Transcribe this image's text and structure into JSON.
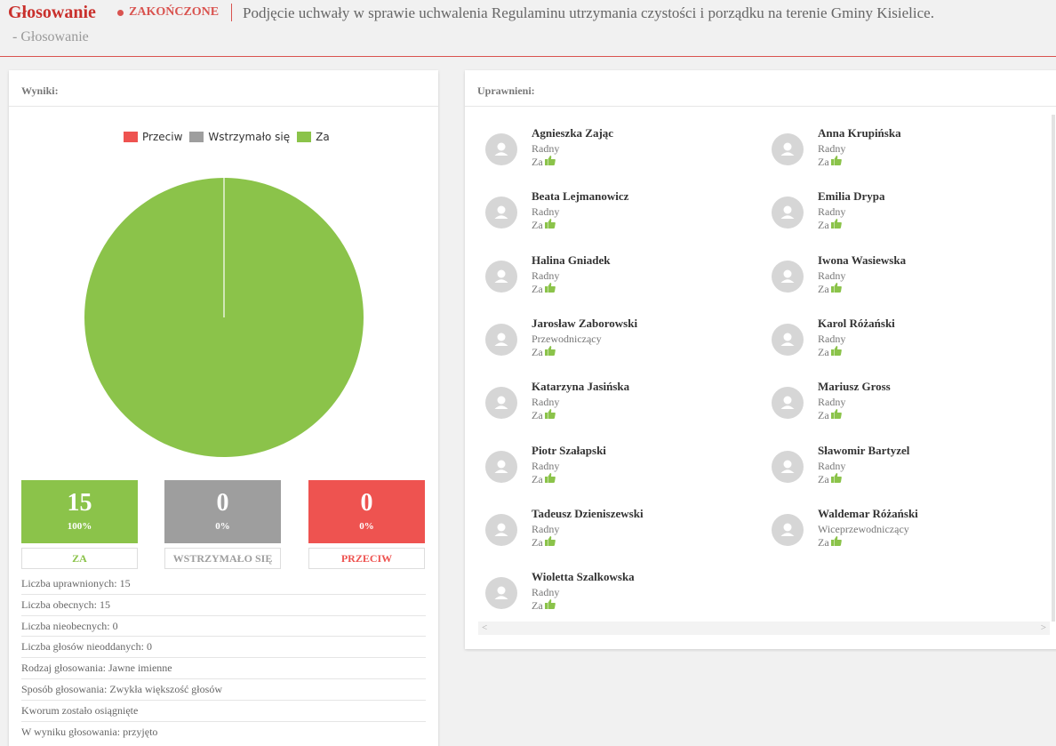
{
  "header": {
    "title": "Głosowanie",
    "status": "ZAKOŃCZONE",
    "description": "Podjęcie uchwały w sprawie uchwalenia Regulaminu utrzymania czystości i porządku na terenie Gminy Kisielice.",
    "breadcrumb": "-  Głosowanie"
  },
  "results": {
    "title": "Wyniki:",
    "legend": [
      {
        "label": "Przeciw",
        "color": "#ee5350"
      },
      {
        "label": "Wstrzymało się",
        "color": "#9e9e9e"
      },
      {
        "label": "Za",
        "color": "#8bc34a"
      }
    ],
    "boxes": {
      "za": {
        "count": "15",
        "percent": "100%",
        "label": "ZA",
        "color": "#8bc34a"
      },
      "abstain": {
        "count": "0",
        "percent": "0%",
        "label": "WSTRZYMAŁO SIĘ",
        "color": "#9e9e9e"
      },
      "against": {
        "count": "0",
        "percent": "0%",
        "label": "PRZECIW",
        "color": "#ee5350"
      }
    },
    "info": [
      "Liczba uprawnionych: 15",
      "Liczba obecnych: 15",
      "Liczba nieobecnych: 0",
      "Liczba głosów nieoddanych: 0",
      "Rodzaj głosowania: Jawne imienne",
      "Sposób głosowania: Zwykła większość głosów",
      "Kworum zostało osiągnięte",
      "W wyniku głosowania: przyjęto"
    ]
  },
  "chart_data": {
    "type": "pie",
    "categories": [
      "Przeciw",
      "Wstrzymało się",
      "Za"
    ],
    "values": [
      0,
      0,
      15
    ],
    "colors": [
      "#ee5350",
      "#9e9e9e",
      "#8bc34a"
    ],
    "title": "",
    "legend_position": "top"
  },
  "voters": {
    "title": "Uprawnieni:",
    "vote_label": "Za",
    "left": [
      {
        "name": "Agnieszka Zając",
        "role": "Radny"
      },
      {
        "name": "Beata Lejmanowicz",
        "role": "Radny"
      },
      {
        "name": "Halina Gniadek",
        "role": "Radny"
      },
      {
        "name": "Jarosław Zaborowski",
        "role": "Przewodniczący"
      },
      {
        "name": "Katarzyna Jasińska",
        "role": "Radny"
      },
      {
        "name": "Piotr Szałapski",
        "role": "Radny"
      },
      {
        "name": "Tadeusz Dzieniszewski",
        "role": "Radny"
      },
      {
        "name": "Wioletta Szalkowska",
        "role": "Radny"
      }
    ],
    "right": [
      {
        "name": "Anna Krupińska",
        "role": "Radny"
      },
      {
        "name": "Emilia Drypa",
        "role": "Radny"
      },
      {
        "name": "Iwona Wasiewska",
        "role": "Radny"
      },
      {
        "name": "Karol Różański",
        "role": "Radny"
      },
      {
        "name": "Mariusz Gross",
        "role": "Radny"
      },
      {
        "name": "Sławomir Bartyzel",
        "role": "Radny"
      },
      {
        "name": "Waldemar Różański",
        "role": "Wiceprzewodniczący"
      }
    ]
  }
}
